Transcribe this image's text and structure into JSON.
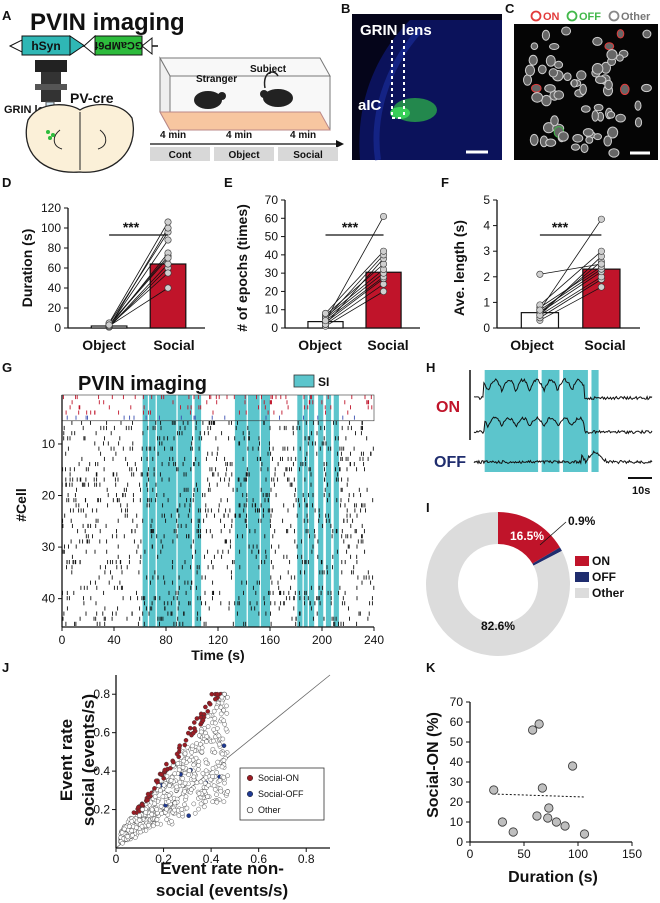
{
  "panel_letters": {
    "A": "A",
    "B": "B",
    "C": "C",
    "D": "D",
    "E": "E",
    "F": "F",
    "G": "G",
    "H": "H",
    "I": "I",
    "J": "J",
    "K": "K"
  },
  "panel_a": {
    "title": "PVIN imaging",
    "construct_promoter": "hSyn",
    "construct_gene": "GCaMP6f",
    "mouse_line": "PV-cre",
    "lens_label": "GRIN lens",
    "stranger_label": "Stranger",
    "subject_label": "Subject",
    "durations": [
      "4 min",
      "4 min",
      "4 min"
    ],
    "phases": [
      "Cont",
      "Object",
      "Social"
    ]
  },
  "panel_b": {
    "lens_label": "GRIN lens",
    "region_label": "aIC"
  },
  "panel_c": {
    "legend": [
      {
        "label": "ON",
        "color": "#e23b3b"
      },
      {
        "label": "OFF",
        "color": "#42b84a"
      },
      {
        "label": "Other",
        "color": "#bbbbbb"
      }
    ]
  },
  "stats": {
    "significance": "***"
  },
  "colors": {
    "social_bar": "#c0142a",
    "teal": "#5cc5cc",
    "on": "#c0142a",
    "off": "#1f2d6e",
    "other": "#dcdcdc"
  },
  "chart_data": [
    {
      "id": "D",
      "type": "bar",
      "ylabel": "Duration (s)",
      "ylim": [
        0,
        120
      ],
      "yticks": [
        0,
        20,
        40,
        60,
        80,
        100,
        120
      ],
      "categories": [
        "Object",
        "Social"
      ],
      "values": [
        2,
        64
      ],
      "paired_points": [
        [
          1,
          60
        ],
        [
          2,
          40
        ],
        [
          1,
          64
        ],
        [
          3,
          72
        ],
        [
          1,
          75
        ],
        [
          2,
          88
        ],
        [
          4,
          96
        ],
        [
          1,
          100
        ],
        [
          5,
          106
        ],
        [
          2,
          55
        ],
        [
          3,
          70
        ]
      ]
    },
    {
      "id": "E",
      "type": "bar",
      "ylabel": "# of epochs (times)",
      "ylim": [
        0,
        70
      ],
      "yticks": [
        0,
        10,
        20,
        30,
        40,
        50,
        60,
        70
      ],
      "categories": [
        "Object",
        "Social"
      ],
      "values": [
        3.5,
        30.5
      ],
      "paired_points": [
        [
          1,
          20
        ],
        [
          2,
          24
        ],
        [
          3,
          27
        ],
        [
          4,
          28
        ],
        [
          5,
          30
        ],
        [
          6,
          32
        ],
        [
          7,
          35
        ],
        [
          2,
          38
        ],
        [
          5,
          40
        ],
        [
          8,
          42
        ],
        [
          4,
          61
        ]
      ]
    },
    {
      "id": "F",
      "type": "bar",
      "ylabel": "Ave. length (s)",
      "ylim": [
        0,
        5
      ],
      "yticks": [
        0,
        1,
        2,
        3,
        4,
        5
      ],
      "categories": [
        "Object",
        "Social"
      ],
      "values": [
        0.6,
        2.3
      ],
      "paired_points": [
        [
          0.3,
          1.6
        ],
        [
          0.4,
          1.9
        ],
        [
          0.5,
          2.0
        ],
        [
          0.6,
          2.2
        ],
        [
          0.7,
          2.3
        ],
        [
          0.8,
          2.4
        ],
        [
          0.6,
          2.6
        ],
        [
          0.5,
          2.8
        ],
        [
          0.9,
          3.0
        ],
        [
          2.1,
          2.5
        ],
        [
          0.7,
          4.25
        ]
      ]
    },
    {
      "id": "G",
      "type": "raster",
      "title": "PVIN imaging",
      "legend_label": "SI",
      "xlabel": "Time (s)",
      "ylabel": "#Cell",
      "xlim": [
        0,
        240
      ],
      "xticks": [
        0,
        40,
        80,
        120,
        160,
        200,
        240
      ],
      "ylim": [
        0,
        45
      ],
      "yticks": [
        10,
        20,
        30,
        40
      ],
      "on_cells": 4,
      "off_cells": 1,
      "total_cells": 45,
      "si_epochs": [
        [
          62,
          66
        ],
        [
          67,
          72
        ],
        [
          73,
          88
        ],
        [
          89,
          100
        ],
        [
          102,
          107
        ],
        [
          133,
          142
        ],
        [
          143,
          152
        ],
        [
          153,
          160
        ],
        [
          181,
          185
        ],
        [
          186,
          189
        ],
        [
          190,
          194
        ],
        [
          197,
          201
        ],
        [
          203,
          207
        ],
        [
          209,
          213
        ]
      ]
    },
    {
      "id": "H",
      "type": "trace",
      "labels": [
        "ON",
        "OFF"
      ],
      "scale_label": "10s",
      "si_epochs": [
        [
          0.06,
          0.36
        ],
        [
          0.38,
          0.48
        ],
        [
          0.5,
          0.64
        ],
        [
          0.66,
          0.7
        ]
      ]
    },
    {
      "id": "I",
      "type": "pie",
      "slices": [
        {
          "label": "ON",
          "value": 16.5,
          "text": "16.5%"
        },
        {
          "label": "OFF",
          "value": 0.9,
          "text": "0.9%"
        },
        {
          "label": "Other",
          "value": 82.6,
          "text": "82.6%"
        }
      ]
    },
    {
      "id": "J",
      "type": "scatter",
      "xlabel": "Event rate non-social (events/s)",
      "ylabel": "Event rate social (events/s)",
      "xlim": [
        0,
        0.9
      ],
      "ylim": [
        0,
        0.9
      ],
      "xticks": [
        0,
        0.2,
        0.4,
        0.6,
        0.8
      ],
      "yticks": [
        0.2,
        0.4,
        0.6,
        0.8
      ],
      "legend": [
        {
          "label": "Social-ON",
          "color": "#9b1c24"
        },
        {
          "label": "Social-OFF",
          "color": "#1f3a93"
        },
        {
          "label": "Other",
          "color": "#ffffff"
        }
      ]
    },
    {
      "id": "K",
      "type": "scatter",
      "xlabel": "Duration (s)",
      "ylabel": "Social-ON (%)",
      "xlim": [
        0,
        150
      ],
      "ylim": [
        0,
        70
      ],
      "xticks": [
        0,
        50,
        100,
        150
      ],
      "yticks": [
        0,
        10,
        20,
        30,
        40,
        50,
        60,
        70
      ],
      "points": [
        [
          22,
          26
        ],
        [
          30,
          10
        ],
        [
          40,
          5
        ],
        [
          58,
          56
        ],
        [
          64,
          59
        ],
        [
          62,
          13
        ],
        [
          67,
          27
        ],
        [
          72,
          12
        ],
        [
          73,
          17
        ],
        [
          80,
          10
        ],
        [
          88,
          8
        ],
        [
          95,
          38
        ],
        [
          106,
          4
        ]
      ],
      "trend": [
        [
          22,
          24
        ],
        [
          106,
          22.5
        ]
      ]
    }
  ]
}
